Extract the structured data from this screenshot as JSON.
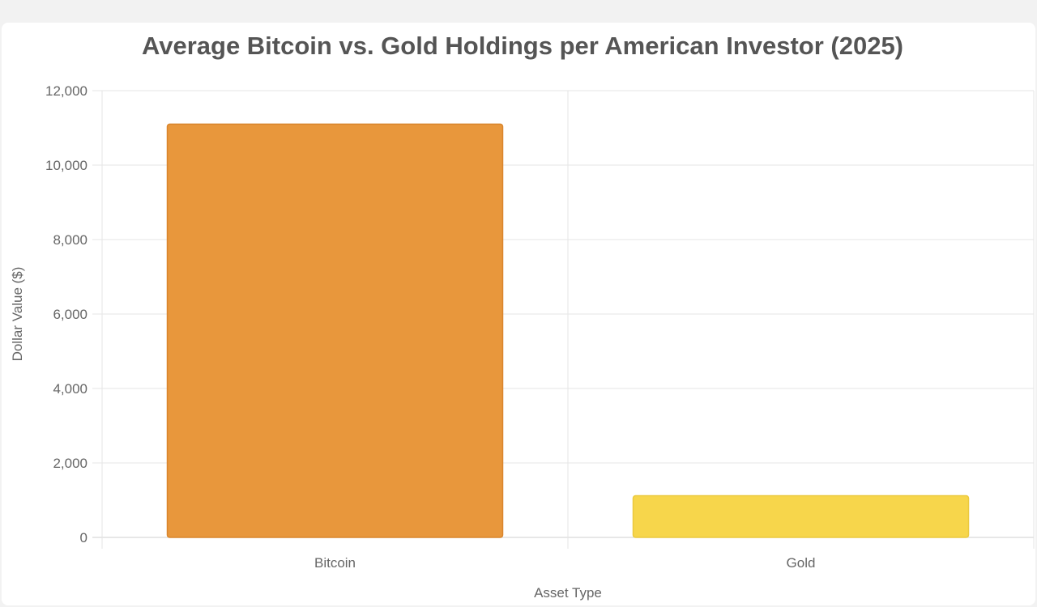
{
  "chart_data": {
    "type": "bar",
    "title": "Average Bitcoin vs. Gold Holdings per American Investor (2025)",
    "xlabel": "Asset Type",
    "ylabel": "Dollar Value ($)",
    "categories": [
      "Bitcoin",
      "Gold"
    ],
    "values": [
      11100,
      1120
    ],
    "colors": [
      "#E8973C",
      "#F7D64B"
    ],
    "border_colors": [
      "#D9852C",
      "#EBC93E"
    ],
    "ylim": [
      0,
      12000
    ],
    "yticks": [
      0,
      2000,
      4000,
      6000,
      8000,
      10000,
      12000
    ],
    "ytick_labels": [
      "0",
      "2,000",
      "4,000",
      "6,000",
      "8,000",
      "10,000",
      "12,000"
    ],
    "grid": true,
    "legend": "none"
  }
}
